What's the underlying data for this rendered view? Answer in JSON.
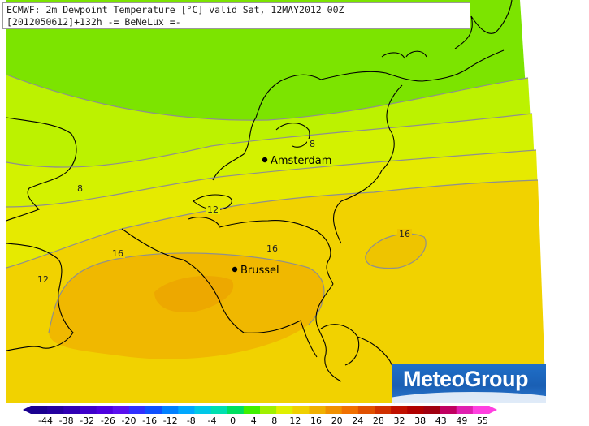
{
  "title": {
    "line1": "ECMWF: 2m Dewpoint Temperature [°C] valid Sat, 12MAY2012 00Z",
    "line2": "[2012050612]+132h -= BeNeLux =-"
  },
  "cities": [
    {
      "name": "Amsterdam"
    },
    {
      "name": "Brussel"
    }
  ],
  "contour_labels": [
    "8",
    "8",
    "12",
    "12",
    "16",
    "16",
    "16"
  ],
  "logo": {
    "text": "MeteoGroup"
  },
  "colorbar": {
    "ticks": [
      "-44",
      "-38",
      "-32",
      "-26",
      "-20",
      "-16",
      "-12",
      "-8",
      "-4",
      "0",
      "4",
      "8",
      "12",
      "16",
      "20",
      "24",
      "28",
      "32",
      "38",
      "43",
      "49",
      "55"
    ],
    "colors": [
      "#1a0090",
      "#24009f",
      "#3000b4",
      "#3e00cc",
      "#4d00e0",
      "#5a10f0",
      "#3030ff",
      "#1050ff",
      "#0080ff",
      "#00a8ff",
      "#00c8e8",
      "#00e0b0",
      "#00e060",
      "#40f000",
      "#a0f000",
      "#e0f000",
      "#f0d000",
      "#f0b000",
      "#f09000",
      "#f07000",
      "#e05000",
      "#d03000",
      "#c01000",
      "#b00000",
      "#a00010",
      "#c00060",
      "#e020b0",
      "#ff40e0"
    ]
  },
  "fill_colors": {
    "green": "#7ce400",
    "lime": "#bcf200",
    "yellow": "#e2ef00",
    "gold": "#f1d400",
    "orange": "#f0b200"
  }
}
